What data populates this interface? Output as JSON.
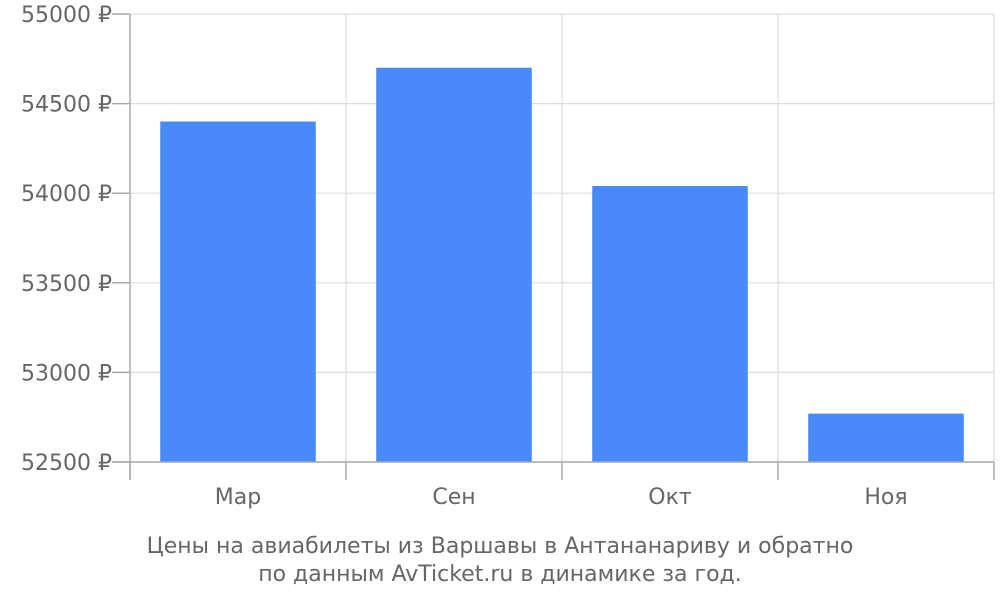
{
  "chart_data": {
    "type": "bar",
    "categories": [
      "Мар",
      "Сен",
      "Окт",
      "Ноя"
    ],
    "values": [
      54400,
      54700,
      54040,
      52770
    ],
    "ylim": [
      52500,
      55000
    ],
    "yticks": [
      52500,
      53000,
      53500,
      54000,
      54500,
      55000
    ],
    "ytick_suffix": " ₽",
    "grid": true,
    "legend": "none",
    "bar_color": "#4a89f9",
    "grid_color": "#dddddd",
    "axis_color": "#aaaaaa",
    "text_color": "#666666"
  },
  "caption": {
    "line1": "Цены на авиабилеты из Варшавы в Антананариву и обратно",
    "line2": "по данным AvTicket.ru в динамике за год."
  }
}
